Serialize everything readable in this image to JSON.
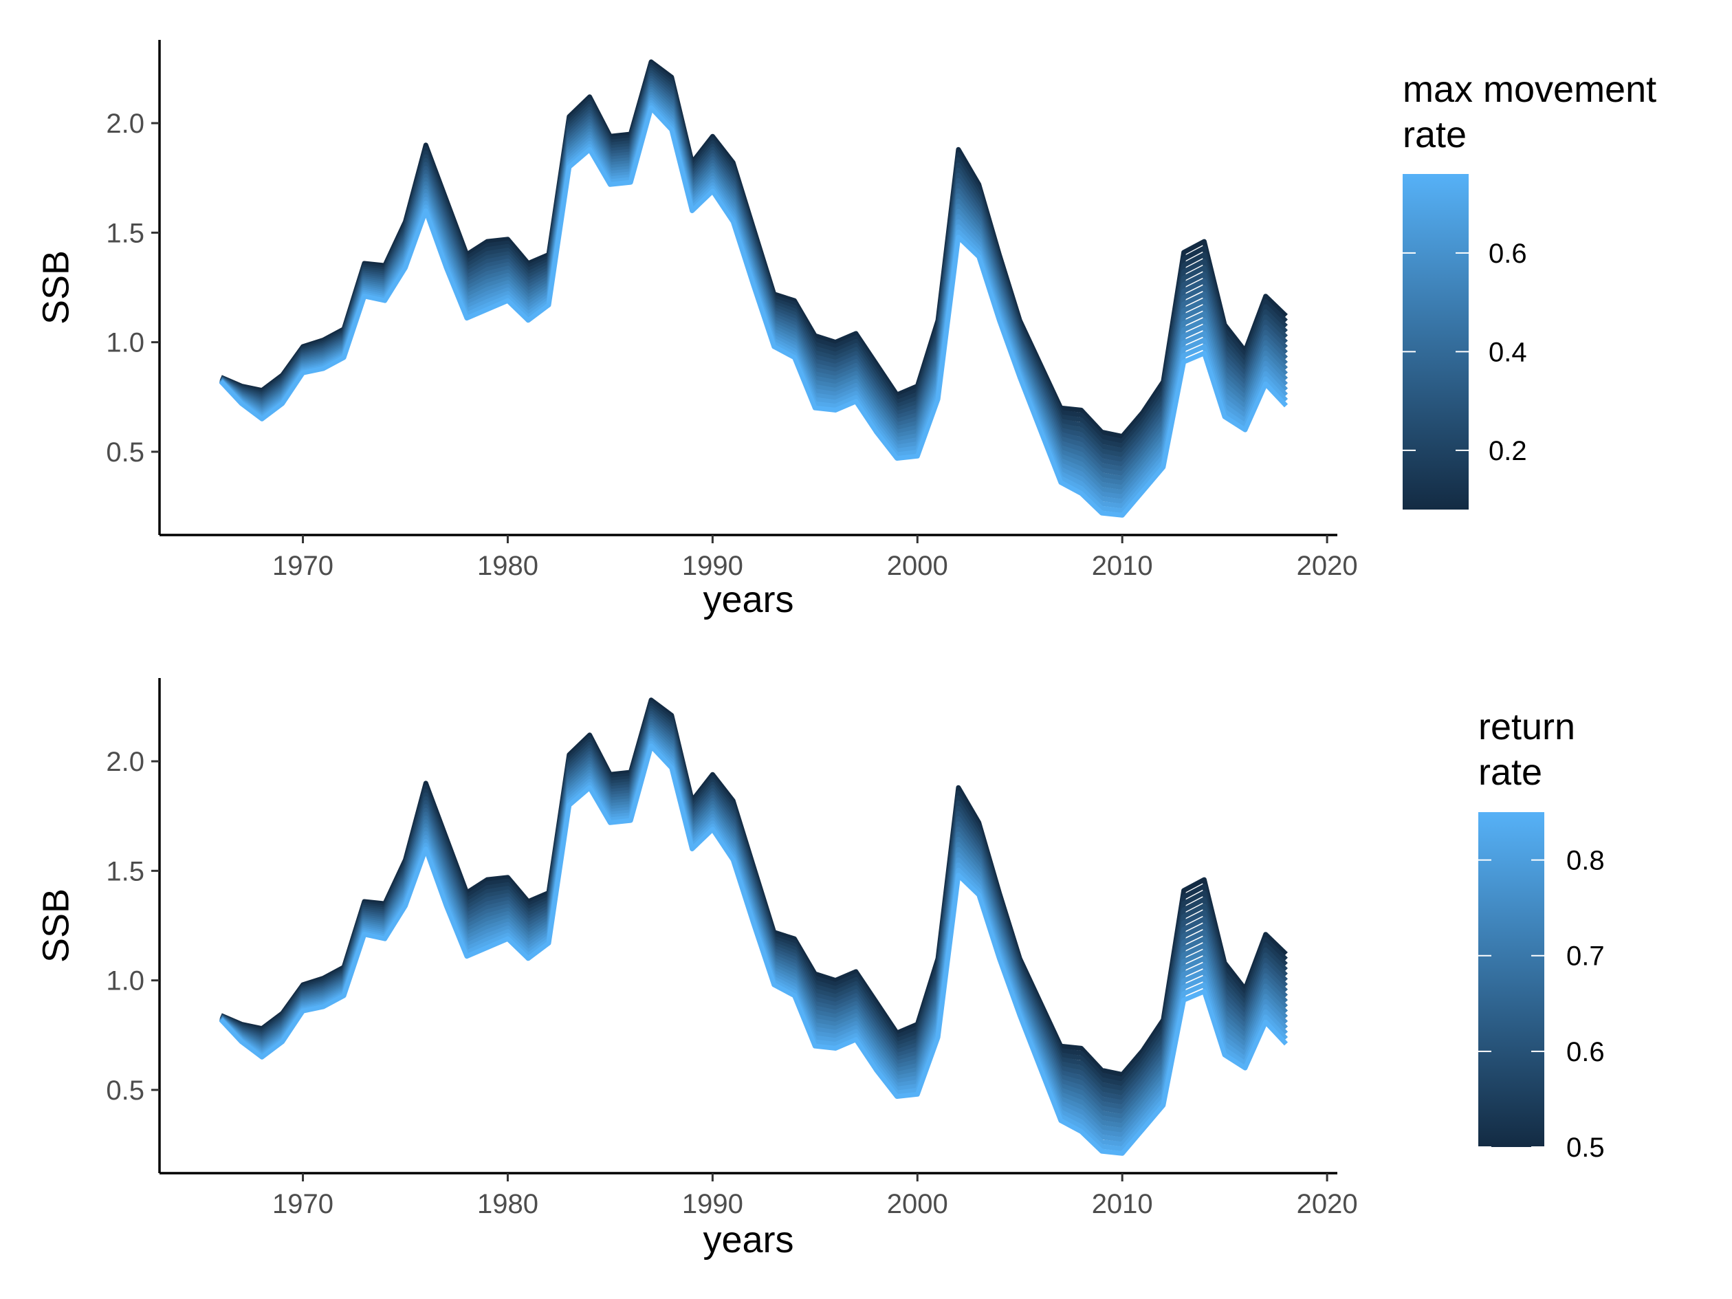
{
  "chart_data": [
    {
      "type": "line",
      "xlabel": "years",
      "ylabel": "SSB",
      "xlim": [
        1963,
        2020.5
      ],
      "ylim": [
        0.12,
        2.38
      ],
      "x_ticks": [
        1970,
        1980,
        1990,
        2000,
        2010,
        2020
      ],
      "y_ticks": [
        0.5,
        1.0,
        1.5,
        2.0
      ],
      "x_tick_labels": [
        "1970",
        "1980",
        "1990",
        "2000",
        "2010",
        "2020"
      ],
      "y_tick_labels": [
        "0.5",
        "1.0",
        "1.5",
        "2.0"
      ],
      "x": [
        1966,
        1967,
        1968,
        1969,
        1970,
        1971,
        1972,
        1973,
        1974,
        1975,
        1976,
        1977,
        1978,
        1979,
        1980,
        1981,
        1982,
        1983,
        1984,
        1985,
        1986,
        1987,
        1988,
        1989,
        1990,
        1991,
        1992,
        1993,
        1994,
        1995,
        1996,
        1997,
        1998,
        1999,
        2000,
        2001,
        2002,
        2003,
        2004,
        2005,
        2006,
        2007,
        2008,
        2009,
        2010,
        2011,
        2012,
        2013,
        2014,
        2015,
        2016,
        2017,
        2018
      ],
      "series_parameter": "max movement rate",
      "param_range": [
        0.08,
        0.76
      ],
      "series_count": 18,
      "series_low_param": [
        0.84,
        0.8,
        0.78,
        0.85,
        0.98,
        1.01,
        1.06,
        1.36,
        1.35,
        1.55,
        1.9,
        1.65,
        1.4,
        1.46,
        1.47,
        1.36,
        1.4,
        2.03,
        2.12,
        1.94,
        1.95,
        2.28,
        2.21,
        1.82,
        1.94,
        1.82,
        1.52,
        1.22,
        1.19,
        1.03,
        1.0,
        1.04,
        0.9,
        0.76,
        0.8,
        1.1,
        1.88,
        1.72,
        1.4,
        1.1,
        0.9,
        0.7,
        0.69,
        0.59,
        0.57,
        0.68,
        0.82,
        1.41,
        1.46,
        1.08,
        0.96,
        1.21,
        1.12
      ],
      "series_high_param": [
        0.82,
        0.72,
        0.65,
        0.72,
        0.86,
        0.88,
        0.93,
        1.21,
        1.19,
        1.34,
        1.6,
        1.34,
        1.11,
        1.15,
        1.19,
        1.1,
        1.17,
        1.8,
        1.88,
        1.72,
        1.73,
        2.07,
        1.97,
        1.6,
        1.69,
        1.55,
        1.26,
        0.98,
        0.93,
        0.7,
        0.69,
        0.73,
        0.59,
        0.47,
        0.48,
        0.74,
        1.48,
        1.39,
        1.1,
        0.84,
        0.6,
        0.36,
        0.31,
        0.22,
        0.21,
        0.32,
        0.43,
        0.91,
        0.95,
        0.66,
        0.6,
        0.81,
        0.71
      ],
      "legend": {
        "title_line1": "max movement",
        "title_line2": "rate",
        "labels": [
          "0.2",
          "0.4",
          "0.6"
        ],
        "values": [
          0.2,
          0.4,
          0.6
        ],
        "range": [
          0.08,
          0.76
        ],
        "color_low": "#132B43",
        "color_high": "#56B1F7"
      }
    },
    {
      "type": "line",
      "xlabel": "years",
      "ylabel": "SSB",
      "xlim": [
        1963,
        2020.5
      ],
      "ylim": [
        0.12,
        2.38
      ],
      "x_ticks": [
        1970,
        1980,
        1990,
        2000,
        2010,
        2020
      ],
      "y_ticks": [
        0.5,
        1.0,
        1.5,
        2.0
      ],
      "x_tick_labels": [
        "1970",
        "1980",
        "1990",
        "2000",
        "2010",
        "2020"
      ],
      "y_tick_labels": [
        "0.5",
        "1.0",
        "1.5",
        "2.0"
      ],
      "x": [
        1966,
        1967,
        1968,
        1969,
        1970,
        1971,
        1972,
        1973,
        1974,
        1975,
        1976,
        1977,
        1978,
        1979,
        1980,
        1981,
        1982,
        1983,
        1984,
        1985,
        1986,
        1987,
        1988,
        1989,
        1990,
        1991,
        1992,
        1993,
        1994,
        1995,
        1996,
        1997,
        1998,
        1999,
        2000,
        2001,
        2002,
        2003,
        2004,
        2005,
        2006,
        2007,
        2008,
        2009,
        2010,
        2011,
        2012,
        2013,
        2014,
        2015,
        2016,
        2017,
        2018
      ],
      "series_parameter": "return rate",
      "param_range": [
        0.5,
        0.85
      ],
      "series_count": 18,
      "series_low_param": [
        0.84,
        0.8,
        0.78,
        0.85,
        0.98,
        1.01,
        1.06,
        1.36,
        1.35,
        1.55,
        1.9,
        1.65,
        1.4,
        1.46,
        1.47,
        1.36,
        1.4,
        2.03,
        2.12,
        1.94,
        1.95,
        2.28,
        2.21,
        1.82,
        1.94,
        1.82,
        1.52,
        1.22,
        1.19,
        1.03,
        1.0,
        1.04,
        0.9,
        0.76,
        0.8,
        1.1,
        1.88,
        1.72,
        1.4,
        1.1,
        0.9,
        0.7,
        0.69,
        0.59,
        0.57,
        0.68,
        0.82,
        1.41,
        1.46,
        1.08,
        0.96,
        1.21,
        1.12
      ],
      "series_high_param": [
        0.82,
        0.72,
        0.65,
        0.72,
        0.86,
        0.88,
        0.93,
        1.21,
        1.19,
        1.34,
        1.6,
        1.34,
        1.11,
        1.15,
        1.19,
        1.1,
        1.17,
        1.8,
        1.88,
        1.72,
        1.73,
        2.07,
        1.97,
        1.6,
        1.69,
        1.55,
        1.26,
        0.98,
        0.93,
        0.7,
        0.69,
        0.73,
        0.59,
        0.47,
        0.48,
        0.74,
        1.48,
        1.39,
        1.1,
        0.84,
        0.6,
        0.36,
        0.31,
        0.22,
        0.21,
        0.32,
        0.43,
        0.91,
        0.95,
        0.66,
        0.6,
        0.81,
        0.71
      ],
      "legend": {
        "title_line1": "return",
        "title_line2": "rate",
        "labels": [
          "0.5",
          "0.6",
          "0.7",
          "0.8"
        ],
        "values": [
          0.5,
          0.6,
          0.7,
          0.8
        ],
        "range": [
          0.5,
          0.85
        ],
        "color_low": "#132B43",
        "color_high": "#56B1F7"
      }
    }
  ]
}
